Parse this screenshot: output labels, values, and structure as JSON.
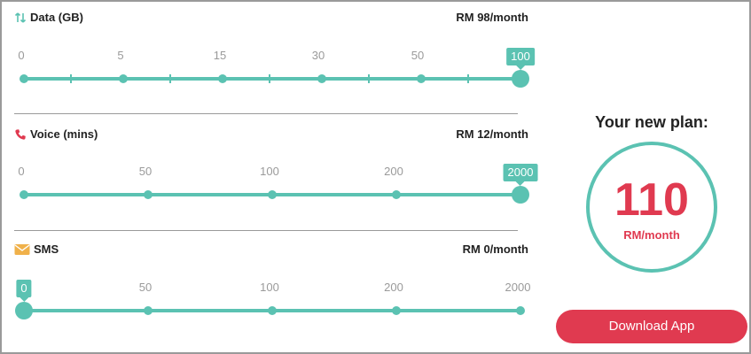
{
  "colors": {
    "accent": "#5bc2b2",
    "brand_red": "#e03a50",
    "sms_icon": "#f0b14a"
  },
  "sliders": [
    {
      "id": "data",
      "icon": "arrows-up-down-icon",
      "title": "Data (GB)",
      "price": "RM 98/month",
      "ticks": [
        "0",
        "5",
        "15",
        "30",
        "50",
        "100"
      ],
      "selected": "100"
    },
    {
      "id": "voice",
      "icon": "phone-icon",
      "title": "Voice (mins)",
      "price": "RM 12/month",
      "ticks": [
        "0",
        "50",
        "100",
        "200",
        "2000"
      ],
      "selected": "2000"
    },
    {
      "id": "sms",
      "icon": "envelope-icon",
      "title": "SMS",
      "price": "RM 0/month",
      "ticks": [
        "0",
        "50",
        "100",
        "200",
        "2000"
      ],
      "selected": "0"
    }
  ],
  "plan": {
    "title": "Your new plan:",
    "amount": "110",
    "unit": "RM/month",
    "download_label": "Download App"
  }
}
